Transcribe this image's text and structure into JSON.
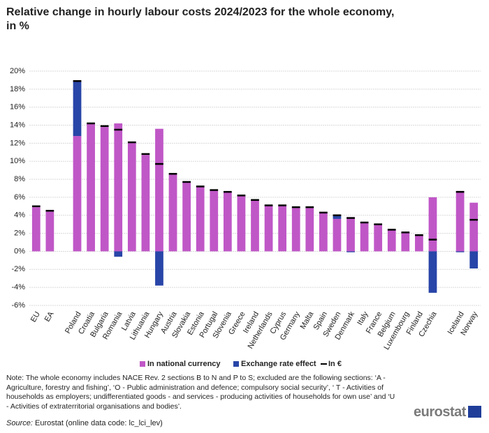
{
  "chart_data": {
    "type": "bar",
    "title": "Relative change in hourly labour costs 2024/2023 for the whole economy, in %",
    "categories": [
      "EU",
      "EA",
      null,
      "Poland",
      "Croatia",
      "Bulgaria",
      "Romania",
      "Latvia",
      "Lithuania",
      "Hungary",
      "Austria",
      "Slovakia",
      "Estonia",
      "Portugal",
      "Slovenia",
      "Greece",
      "Ireland",
      "Netherlands",
      "Cyprus",
      "Germany",
      "Malta",
      "Spain",
      "Sweden",
      "Denmark",
      "Italy",
      "France",
      "Belgium",
      "Luxembourg",
      "Finland",
      "Czechia",
      null,
      "Iceland",
      "Norway"
    ],
    "series": [
      {
        "name": "In national currency",
        "color": "#c057c7",
        "values": [
          4.9,
          4.4,
          null,
          12.8,
          14.2,
          13.8,
          14.2,
          12.1,
          10.7,
          13.6,
          8.6,
          7.7,
          7.2,
          6.8,
          6.6,
          6.2,
          5.7,
          5.1,
          5.1,
          4.9,
          4.9,
          4.3,
          3.6,
          3.8,
          3.2,
          3.0,
          2.4,
          2.1,
          1.8,
          6.0,
          null,
          6.7,
          5.4
        ]
      },
      {
        "name": "Exchange rate effect",
        "color": "#2845a8",
        "values": [
          0,
          0,
          null,
          6.1,
          0,
          0,
          -0.6,
          0,
          0,
          -3.8,
          0,
          0,
          0,
          0,
          0,
          0,
          0,
          0,
          0,
          0,
          0,
          0,
          0.4,
          -0.1,
          0,
          0,
          0,
          0,
          0,
          -4.6,
          null,
          -0.1,
          -1.9
        ]
      },
      {
        "name": "In €",
        "color": "#000000",
        "values": [
          5.0,
          4.5,
          null,
          18.9,
          14.2,
          13.9,
          13.5,
          12.1,
          10.8,
          9.7,
          8.6,
          7.7,
          7.2,
          6.8,
          6.6,
          6.2,
          5.7,
          5.1,
          5.1,
          4.9,
          4.9,
          4.3,
          4.0,
          3.7,
          3.2,
          3.0,
          2.4,
          2.1,
          1.8,
          1.3,
          null,
          6.6,
          3.5
        ]
      }
    ],
    "ylim": [
      -6,
      20
    ],
    "yticks": [
      {
        "value": -6,
        "label": "-6%"
      },
      {
        "value": -4,
        "label": "-4%"
      },
      {
        "value": -2,
        "label": "-2%"
      },
      {
        "value": 0,
        "label": "0%"
      },
      {
        "value": 2,
        "label": "2%"
      },
      {
        "value": 4,
        "label": "4%"
      },
      {
        "value": 6,
        "label": "6%"
      },
      {
        "value": 8,
        "label": "8%"
      },
      {
        "value": 10,
        "label": "10%"
      },
      {
        "value": 12,
        "label": "12%"
      },
      {
        "value": 14,
        "label": "14%"
      },
      {
        "value": 16,
        "label": "16%"
      },
      {
        "value": 18,
        "label": "18%"
      },
      {
        "value": 20,
        "label": "20%"
      }
    ],
    "grid": true,
    "legend": "bottom"
  },
  "note": "Note: The whole economy includes  NACE Rev. 2 sections B to N and P to S; excluded are the following sections: ‘A - Agriculture, forestry and fishing’, ‘O - Public administration and defence; compulsory social security’, ‘ T - Activities of households as employers; undifferentiated goods - and services - producing activities of households for own use’ and ‘U - Activities of extraterritorial organisations and bodies’.",
  "source_label": "Source:",
  "source": "Eurostat (online data code: lc_lci_lev)",
  "logo": "eurostat"
}
